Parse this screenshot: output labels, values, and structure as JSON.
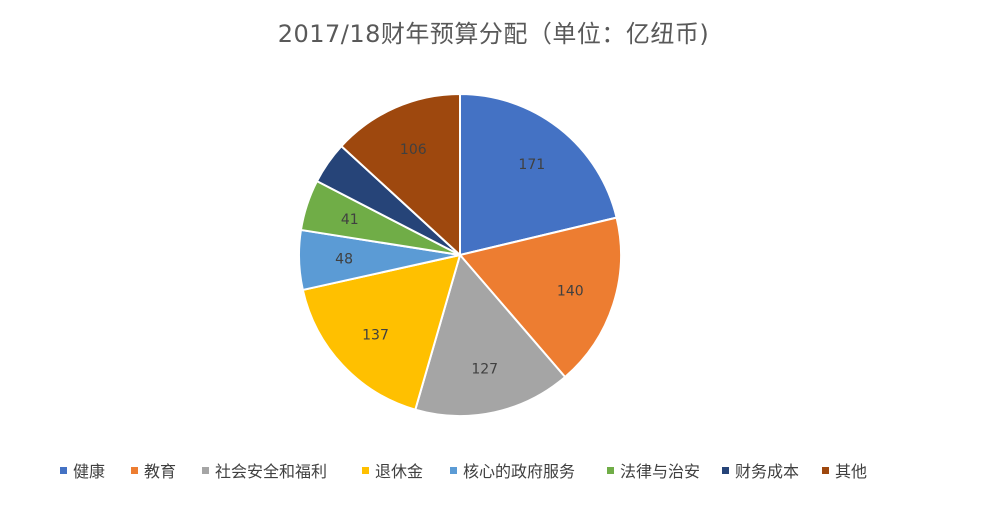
{
  "chart_data": {
    "type": "pie",
    "title": "2017/18财年预算分配（单位：亿纽币)",
    "categories": [
      "健康",
      "教育",
      "社会安全和福利",
      "退休金",
      "核心的政府服务",
      "法律与治安",
      "财务成本",
      "其他"
    ],
    "values": [
      171,
      140,
      127,
      137,
      48,
      41,
      34,
      106
    ],
    "data_labels": [
      "171",
      "140",
      "127",
      "137",
      "48",
      "41",
      "",
      "106"
    ],
    "colors": [
      "#4472C4",
      "#ED7D31",
      "#A5A5A5",
      "#FFC000",
      "#5B9BD5",
      "#70AD47",
      "#264478",
      "#9E480E"
    ],
    "legend_position": "bottom",
    "start_angle_deg": 0,
    "direction": "clockwise"
  }
}
